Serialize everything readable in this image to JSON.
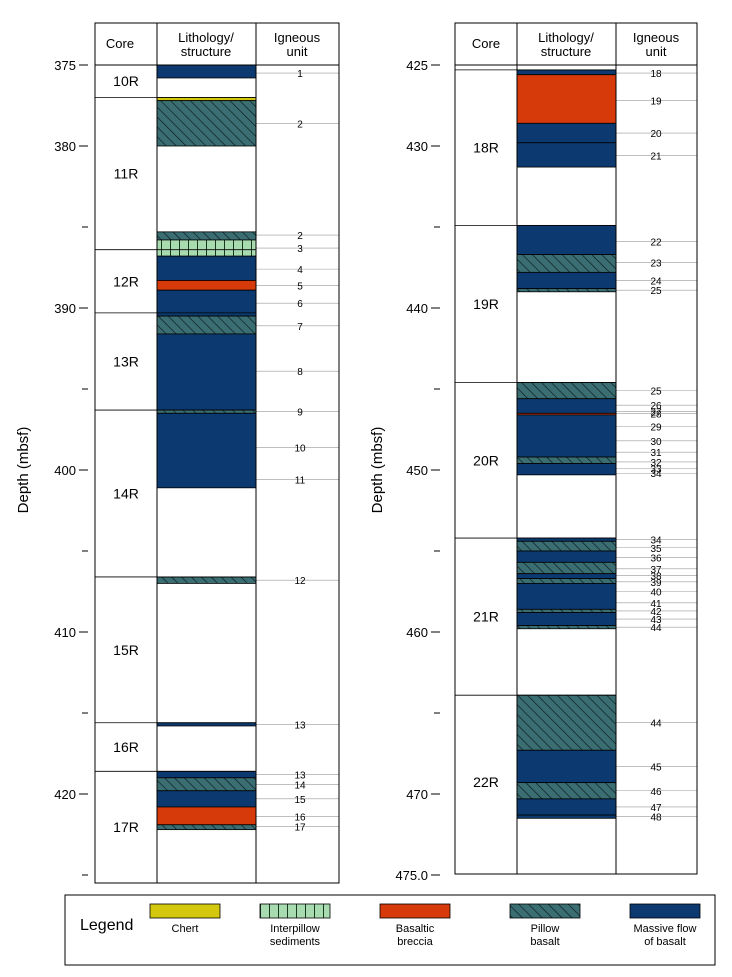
{
  "colors": {
    "chert": "#d4c80f",
    "interpillow": "#a8dcb0",
    "breccia": "#d63a0a",
    "pillow": "#3b6e72",
    "massive": "#0c3a70"
  },
  "headers": {
    "core": "Core",
    "lith1": "Lithology/",
    "lith2": "structure",
    "ign1": "Igneous",
    "ign2": "unit"
  },
  "depth_label": "Depth (mbsf)",
  "left_column": {
    "ticks": [
      "375",
      "380",
      "385",
      "390",
      "395",
      "400",
      "405",
      "410",
      "415",
      "420",
      "425"
    ],
    "tick_labels": {
      "375": "375",
      "380": "380",
      "390": "390",
      "400": "400",
      "410": "410",
      "420": "420"
    },
    "cores": [
      {
        "name": "10R",
        "top": 375.0,
        "bot": 377.0
      },
      {
        "name": "11R",
        "top": 377.0,
        "bot": 386.4
      },
      {
        "name": "12R",
        "top": 386.4,
        "bot": 390.3
      },
      {
        "name": "13R",
        "top": 390.3,
        "bot": 396.3
      },
      {
        "name": "14R",
        "top": 396.3,
        "bot": 406.6
      },
      {
        "name": "15R",
        "top": 406.6,
        "bot": 415.6
      },
      {
        "name": "16R",
        "top": 415.6,
        "bot": 418.6
      },
      {
        "name": "17R",
        "top": 418.6,
        "bot": 425.5
      }
    ],
    "lith": [
      {
        "type": "massive",
        "top": 375.0,
        "bot": 375.8
      },
      {
        "type": "chert",
        "top": 377.0,
        "bot": 377.2
      },
      {
        "type": "pillow",
        "top": 377.2,
        "bot": 380.0
      },
      {
        "type": "pillow",
        "top": 385.3,
        "bot": 385.8
      },
      {
        "type": "interpillow",
        "top": 385.8,
        "bot": 386.8
      },
      {
        "type": "massive",
        "top": 386.8,
        "bot": 388.3
      },
      {
        "type": "breccia",
        "top": 388.3,
        "bot": 388.9
      },
      {
        "type": "massive",
        "top": 388.9,
        "bot": 390.5
      },
      {
        "type": "pillow",
        "top": 390.5,
        "bot": 391.6
      },
      {
        "type": "massive",
        "top": 391.6,
        "bot": 396.3
      },
      {
        "type": "pillow",
        "top": 396.3,
        "bot": 396.5
      },
      {
        "type": "massive",
        "top": 396.5,
        "bot": 401.1
      },
      {
        "type": "pillow",
        "top": 406.6,
        "bot": 407.0
      },
      {
        "type": "massive",
        "top": 415.6,
        "bot": 415.8
      },
      {
        "type": "massive",
        "top": 418.6,
        "bot": 419.0
      },
      {
        "type": "pillow",
        "top": 419.0,
        "bot": 419.8
      },
      {
        "type": "massive",
        "top": 419.8,
        "bot": 420.8
      },
      {
        "type": "breccia",
        "top": 420.8,
        "bot": 421.9
      },
      {
        "type": "pillow",
        "top": 421.9,
        "bot": 422.2
      }
    ],
    "units": [
      {
        "label": "1",
        "depth": 375.5
      },
      {
        "label": "2",
        "depth": 378.6
      },
      {
        "label": "2",
        "depth": 385.5
      },
      {
        "label": "3",
        "depth": 386.3
      },
      {
        "label": "4",
        "depth": 387.6
      },
      {
        "label": "5",
        "depth": 388.6
      },
      {
        "label": "6",
        "depth": 389.7
      },
      {
        "label": "7",
        "depth": 391.1
      },
      {
        "label": "8",
        "depth": 393.9
      },
      {
        "label": "9",
        "depth": 396.4
      },
      {
        "label": "10",
        "depth": 398.6
      },
      {
        "label": "11",
        "depth": 400.6
      },
      {
        "label": "12",
        "depth": 406.8
      },
      {
        "label": "13",
        "depth": 415.7
      },
      {
        "label": "13",
        "depth": 418.8
      },
      {
        "label": "14",
        "depth": 419.4
      },
      {
        "label": "15",
        "depth": 420.3
      },
      {
        "label": "16",
        "depth": 421.4
      },
      {
        "label": "17",
        "depth": 422.0
      }
    ]
  },
  "right_column": {
    "ticks": [
      "425",
      "430",
      "435",
      "440",
      "445",
      "450",
      "455",
      "460",
      "465",
      "470",
      "475"
    ],
    "tick_labels": {
      "425": "425",
      "430": "430",
      "440": "440",
      "450": "450",
      "460": "460",
      "470": "470",
      "475": "475.0"
    },
    "cores": [
      {
        "name": "18R",
        "top": 425.3,
        "bot": 434.9
      },
      {
        "name": "19R",
        "top": 434.9,
        "bot": 444.6
      },
      {
        "name": "20R",
        "top": 444.6,
        "bot": 454.2
      },
      {
        "name": "21R",
        "top": 454.2,
        "bot": 463.9
      },
      {
        "name": "22R",
        "top": 463.9,
        "bot": 474.6
      }
    ],
    "lith": [
      {
        "type": "massive",
        "top": 425.3,
        "bot": 425.6
      },
      {
        "type": "breccia",
        "top": 425.6,
        "bot": 428.6
      },
      {
        "type": "massive",
        "top": 428.6,
        "bot": 429.8
      },
      {
        "type": "massive",
        "top": 429.8,
        "bot": 431.3
      },
      {
        "type": "massive",
        "top": 434.9,
        "bot": 436.7
      },
      {
        "type": "pillow",
        "top": 436.7,
        "bot": 437.8
      },
      {
        "type": "massive",
        "top": 437.8,
        "bot": 438.8
      },
      {
        "type": "pillow",
        "top": 438.8,
        "bot": 439.0
      },
      {
        "type": "pillow",
        "top": 444.6,
        "bot": 445.6
      },
      {
        "type": "massive",
        "top": 445.6,
        "bot": 446.5
      },
      {
        "type": "breccia",
        "top": 446.5,
        "bot": 446.6
      },
      {
        "type": "massive",
        "top": 446.6,
        "bot": 449.2
      },
      {
        "type": "pillow",
        "top": 449.2,
        "bot": 449.6
      },
      {
        "type": "massive",
        "top": 449.6,
        "bot": 450.3
      },
      {
        "type": "massive",
        "top": 454.2,
        "bot": 454.4
      },
      {
        "type": "pillow",
        "top": 454.4,
        "bot": 455.0
      },
      {
        "type": "massive",
        "top": 455.0,
        "bot": 455.7
      },
      {
        "type": "pillow",
        "top": 455.7,
        "bot": 456.4
      },
      {
        "type": "massive",
        "top": 456.4,
        "bot": 456.7
      },
      {
        "type": "pillow",
        "top": 456.7,
        "bot": 457.0
      },
      {
        "type": "massive",
        "top": 457.0,
        "bot": 458.6
      },
      {
        "type": "pillow",
        "top": 458.6,
        "bot": 458.8
      },
      {
        "type": "massive",
        "top": 458.8,
        "bot": 459.6
      },
      {
        "type": "pillow",
        "top": 459.6,
        "bot": 459.8
      },
      {
        "type": "pillow",
        "top": 463.9,
        "bot": 467.3
      },
      {
        "type": "massive",
        "top": 467.3,
        "bot": 469.3
      },
      {
        "type": "pillow",
        "top": 469.3,
        "bot": 470.3
      },
      {
        "type": "massive",
        "top": 470.3,
        "bot": 471.3
      },
      {
        "type": "massive",
        "top": 471.3,
        "bot": 471.5
      }
    ],
    "units": [
      {
        "label": "18",
        "depth": 425.5
      },
      {
        "label": "19",
        "depth": 427.2
      },
      {
        "label": "20",
        "depth": 429.2
      },
      {
        "label": "21",
        "depth": 430.6
      },
      {
        "label": "22",
        "depth": 435.9
      },
      {
        "label": "23",
        "depth": 437.2
      },
      {
        "label": "24",
        "depth": 438.3
      },
      {
        "label": "25",
        "depth": 438.9
      },
      {
        "label": "25",
        "depth": 445.1
      },
      {
        "label": "26",
        "depth": 446.0
      },
      {
        "label": "27",
        "depth": 446.4
      },
      {
        "label": "28",
        "depth": 446.5
      },
      {
        "label": "29",
        "depth": 447.3
      },
      {
        "label": "30",
        "depth": 448.2
      },
      {
        "label": "31",
        "depth": 448.9
      },
      {
        "label": "32",
        "depth": 449.5
      },
      {
        "label": "33",
        "depth": 449.9
      },
      {
        "label": "34",
        "depth": 450.2
      },
      {
        "label": "34",
        "depth": 454.3
      },
      {
        "label": "35",
        "depth": 454.8
      },
      {
        "label": "36",
        "depth": 455.4
      },
      {
        "label": "37",
        "depth": 456.1
      },
      {
        "label": "38",
        "depth": 456.5
      },
      {
        "label": "39",
        "depth": 456.9
      },
      {
        "label": "40",
        "depth": 457.5
      },
      {
        "label": "41",
        "depth": 458.2
      },
      {
        "label": "42",
        "depth": 458.7
      },
      {
        "label": "43",
        "depth": 459.2
      },
      {
        "label": "44",
        "depth": 459.7
      },
      {
        "label": "44",
        "depth": 465.6
      },
      {
        "label": "45",
        "depth": 468.3
      },
      {
        "label": "46",
        "depth": 469.8
      },
      {
        "label": "47",
        "depth": 470.8
      },
      {
        "label": "48",
        "depth": 471.4
      }
    ]
  },
  "legend": {
    "title": "Legend",
    "items": [
      {
        "type": "chert",
        "line1": "Chert",
        "line2": ""
      },
      {
        "type": "interpillow",
        "line1": "Interpillow",
        "line2": "sediments"
      },
      {
        "type": "breccia",
        "line1": "Basaltic",
        "line2": "breccia"
      },
      {
        "type": "pillow",
        "line1": "Pillow",
        "line2": "basalt"
      },
      {
        "type": "massive",
        "line1": "Massive flow",
        "line2": "of basalt"
      }
    ]
  }
}
